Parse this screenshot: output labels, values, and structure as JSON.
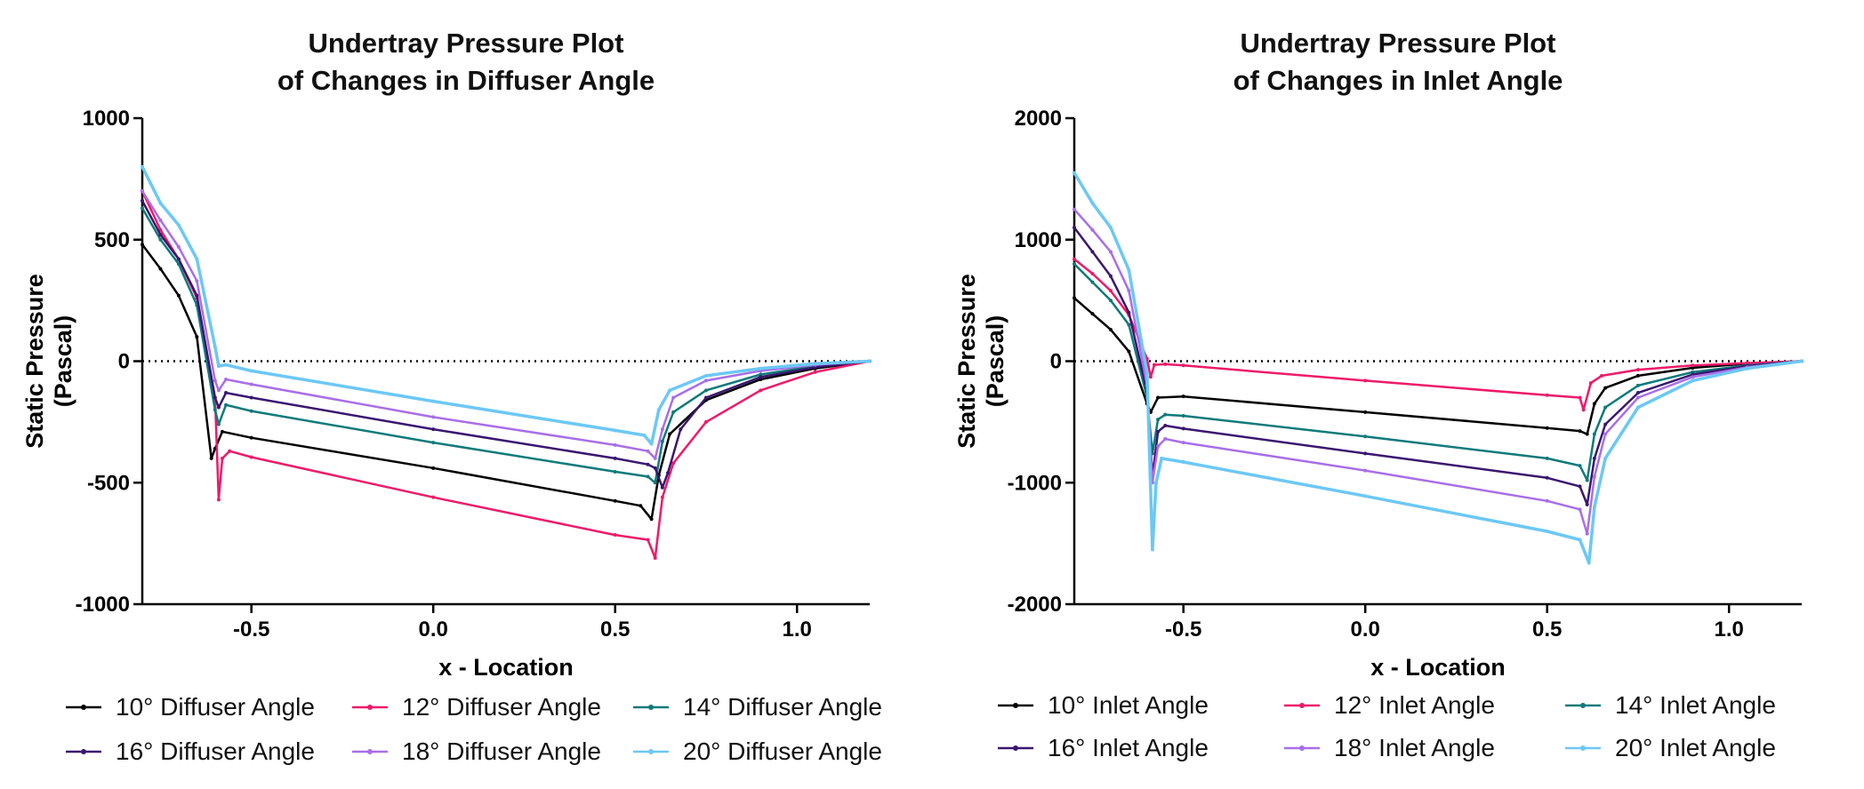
{
  "chart_data": [
    {
      "type": "line",
      "title": "Undertray Pressure Plot",
      "subtitle": "of Changes in Diffuser Angle",
      "xlabel": "x - Location",
      "ylabel_line1": "Static Pressure",
      "ylabel_line2": "(Pascal)",
      "xlim": [
        -0.8,
        1.2
      ],
      "ylim": [
        -1000,
        1000
      ],
      "x_ticks": [
        -0.5,
        0.0,
        0.5,
        1.0
      ],
      "x_tick_labels": [
        "-0.5",
        "0.0",
        "0.5",
        "1.0"
      ],
      "y_ticks": [
        1000,
        500,
        0,
        -500,
        -1000
      ],
      "y_tick_labels": [
        "1000",
        "500",
        "0",
        "-500",
        "-1000"
      ],
      "zero_line": "dotted",
      "grid": false,
      "legend_position": "bottom",
      "series": [
        {
          "name": "10° Diffuser Angle",
          "color": "#000000",
          "points": [
            [
              -0.8,
              480
            ],
            [
              -0.75,
              380
            ],
            [
              -0.7,
              270
            ],
            [
              -0.65,
              100
            ],
            [
              -0.61,
              -400
            ],
            [
              -0.6,
              -360
            ],
            [
              -0.58,
              -290
            ],
            [
              -0.5,
              -315
            ],
            [
              0.0,
              -440
            ],
            [
              0.5,
              -575
            ],
            [
              0.57,
              -595
            ],
            [
              0.6,
              -650
            ],
            [
              0.62,
              -470
            ],
            [
              0.65,
              -300
            ],
            [
              0.75,
              -160
            ],
            [
              0.9,
              -75
            ],
            [
              1.05,
              -30
            ],
            [
              1.2,
              0
            ]
          ]
        },
        {
          "name": "12° Diffuser Angle",
          "color": "#ee1a6a",
          "points": [
            [
              -0.8,
              700
            ],
            [
              -0.75,
              540
            ],
            [
              -0.7,
              420
            ],
            [
              -0.65,
              260
            ],
            [
              -0.6,
              -150
            ],
            [
              -0.59,
              -570
            ],
            [
              -0.58,
              -400
            ],
            [
              -0.56,
              -370
            ],
            [
              -0.5,
              -395
            ],
            [
              0.0,
              -560
            ],
            [
              0.5,
              -715
            ],
            [
              0.59,
              -735
            ],
            [
              0.61,
              -810
            ],
            [
              0.63,
              -560
            ],
            [
              0.66,
              -420
            ],
            [
              0.75,
              -250
            ],
            [
              0.9,
              -120
            ],
            [
              1.05,
              -45
            ],
            [
              1.2,
              0
            ]
          ]
        },
        {
          "name": "14° Diffuser Angle",
          "color": "#0f7a7a",
          "points": [
            [
              -0.8,
              630
            ],
            [
              -0.75,
              500
            ],
            [
              -0.7,
              400
            ],
            [
              -0.65,
              230
            ],
            [
              -0.6,
              -200
            ],
            [
              -0.59,
              -260
            ],
            [
              -0.57,
              -180
            ],
            [
              -0.5,
              -205
            ],
            [
              0.0,
              -335
            ],
            [
              0.5,
              -455
            ],
            [
              0.59,
              -475
            ],
            [
              0.61,
              -500
            ],
            [
              0.63,
              -330
            ],
            [
              0.66,
              -210
            ],
            [
              0.75,
              -120
            ],
            [
              0.9,
              -55
            ],
            [
              1.05,
              -20
            ],
            [
              1.2,
              0
            ]
          ]
        },
        {
          "name": "16° Diffuser Angle",
          "color": "#3a1670",
          "points": [
            [
              -0.8,
              660
            ],
            [
              -0.75,
              520
            ],
            [
              -0.7,
              420
            ],
            [
              -0.65,
              270
            ],
            [
              -0.6,
              -150
            ],
            [
              -0.59,
              -190
            ],
            [
              -0.57,
              -130
            ],
            [
              -0.5,
              -150
            ],
            [
              0.0,
              -280
            ],
            [
              0.5,
              -400
            ],
            [
              0.59,
              -425
            ],
            [
              0.61,
              -440
            ],
            [
              0.63,
              -520
            ],
            [
              0.645,
              -460
            ],
            [
              0.68,
              -280
            ],
            [
              0.75,
              -150
            ],
            [
              0.9,
              -65
            ],
            [
              1.05,
              -25
            ],
            [
              1.2,
              0
            ]
          ]
        },
        {
          "name": "18° Diffuser Angle",
          "color": "#a86ee8",
          "points": [
            [
              -0.8,
              700
            ],
            [
              -0.75,
              580
            ],
            [
              -0.7,
              470
            ],
            [
              -0.65,
              330
            ],
            [
              -0.6,
              -80
            ],
            [
              -0.59,
              -120
            ],
            [
              -0.57,
              -75
            ],
            [
              -0.5,
              -95
            ],
            [
              0.0,
              -230
            ],
            [
              0.5,
              -345
            ],
            [
              0.59,
              -370
            ],
            [
              0.61,
              -400
            ],
            [
              0.63,
              -280
            ],
            [
              0.66,
              -150
            ],
            [
              0.75,
              -80
            ],
            [
              0.9,
              -40
            ],
            [
              1.05,
              -15
            ],
            [
              1.2,
              0
            ]
          ]
        },
        {
          "name": "20° Diffuser Angle",
          "color": "#6cc8f5",
          "points": [
            [
              -0.8,
              800
            ],
            [
              -0.75,
              650
            ],
            [
              -0.7,
              560
            ],
            [
              -0.65,
              420
            ],
            [
              -0.6,
              60
            ],
            [
              -0.59,
              -20
            ],
            [
              -0.57,
              -15
            ],
            [
              -0.5,
              -40
            ],
            [
              0.0,
              -165
            ],
            [
              0.5,
              -285
            ],
            [
              0.58,
              -305
            ],
            [
              0.6,
              -340
            ],
            [
              0.62,
              -200
            ],
            [
              0.65,
              -120
            ],
            [
              0.75,
              -60
            ],
            [
              0.9,
              -30
            ],
            [
              1.05,
              -10
            ],
            [
              1.2,
              0
            ]
          ]
        }
      ]
    },
    {
      "type": "line",
      "title": "Undertray Pressure Plot",
      "subtitle": "of Changes in Inlet Angle",
      "xlabel": "x - Location",
      "ylabel_line1": "Static Pressure",
      "ylabel_line2": "(Pascal)",
      "xlim": [
        -0.8,
        1.2
      ],
      "ylim": [
        -2000,
        2000
      ],
      "x_ticks": [
        -0.5,
        0.0,
        0.5,
        1.0
      ],
      "x_tick_labels": [
        "-0.5",
        "0.0",
        "0.5",
        "1.0"
      ],
      "y_ticks": [
        2000,
        1000,
        0,
        -1000,
        -2000
      ],
      "y_tick_labels": [
        "2000",
        "1000",
        "0",
        "-1000",
        "-2000"
      ],
      "zero_line": "dotted",
      "grid": false,
      "legend_position": "bottom",
      "series": [
        {
          "name": "10° Inlet Angle",
          "color": "#000000",
          "points": [
            [
              -0.8,
              520
            ],
            [
              -0.75,
              390
            ],
            [
              -0.7,
              260
            ],
            [
              -0.65,
              80
            ],
            [
              -0.6,
              -350
            ],
            [
              -0.59,
              -420
            ],
            [
              -0.57,
              -300
            ],
            [
              -0.5,
              -290
            ],
            [
              0.0,
              -420
            ],
            [
              0.5,
              -550
            ],
            [
              0.59,
              -575
            ],
            [
              0.61,
              -600
            ],
            [
              0.63,
              -350
            ],
            [
              0.66,
              -220
            ],
            [
              0.75,
              -120
            ],
            [
              0.9,
              -55
            ],
            [
              1.05,
              -20
            ],
            [
              1.2,
              0
            ]
          ]
        },
        {
          "name": "12° Inlet Angle",
          "color": "#ee1a6a",
          "points": [
            [
              -0.8,
              840
            ],
            [
              -0.75,
              720
            ],
            [
              -0.7,
              580
            ],
            [
              -0.65,
              380
            ],
            [
              -0.6,
              20
            ],
            [
              -0.59,
              -130
            ],
            [
              -0.58,
              -30
            ],
            [
              -0.55,
              -25
            ],
            [
              -0.5,
              -35
            ],
            [
              0.0,
              -160
            ],
            [
              0.5,
              -280
            ],
            [
              0.59,
              -300
            ],
            [
              0.6,
              -400
            ],
            [
              0.62,
              -180
            ],
            [
              0.65,
              -120
            ],
            [
              0.75,
              -70
            ],
            [
              0.9,
              -35
            ],
            [
              1.05,
              -15
            ],
            [
              1.2,
              0
            ]
          ]
        },
        {
          "name": "14° Inlet Angle",
          "color": "#0f7a7a",
          "points": [
            [
              -0.8,
              800
            ],
            [
              -0.75,
              650
            ],
            [
              -0.7,
              500
            ],
            [
              -0.65,
              300
            ],
            [
              -0.6,
              -300
            ],
            [
              -0.585,
              -760
            ],
            [
              -0.57,
              -480
            ],
            [
              -0.55,
              -440
            ],
            [
              -0.5,
              -450
            ],
            [
              0.0,
              -620
            ],
            [
              0.5,
              -800
            ],
            [
              0.59,
              -860
            ],
            [
              0.61,
              -980
            ],
            [
              0.63,
              -600
            ],
            [
              0.66,
              -380
            ],
            [
              0.75,
              -200
            ],
            [
              0.9,
              -90
            ],
            [
              1.05,
              -35
            ],
            [
              1.2,
              0
            ]
          ]
        },
        {
          "name": "16° Inlet Angle",
          "color": "#3a1670",
          "points": [
            [
              -0.8,
              1100
            ],
            [
              -0.75,
              900
            ],
            [
              -0.7,
              700
            ],
            [
              -0.65,
              400
            ],
            [
              -0.6,
              -250
            ],
            [
              -0.585,
              -950
            ],
            [
              -0.57,
              -580
            ],
            [
              -0.55,
              -530
            ],
            [
              -0.5,
              -555
            ],
            [
              0.0,
              -760
            ],
            [
              0.5,
              -960
            ],
            [
              0.59,
              -1030
            ],
            [
              0.61,
              -1180
            ],
            [
              0.63,
              -800
            ],
            [
              0.66,
              -520
            ],
            [
              0.75,
              -260
            ],
            [
              0.9,
              -110
            ],
            [
              1.05,
              -40
            ],
            [
              1.2,
              0
            ]
          ]
        },
        {
          "name": "18° Inlet Angle",
          "color": "#a86ee8",
          "points": [
            [
              -0.8,
              1250
            ],
            [
              -0.75,
              1080
            ],
            [
              -0.7,
              900
            ],
            [
              -0.65,
              580
            ],
            [
              -0.6,
              -200
            ],
            [
              -0.585,
              -1000
            ],
            [
              -0.57,
              -700
            ],
            [
              -0.55,
              -640
            ],
            [
              -0.5,
              -670
            ],
            [
              0.0,
              -900
            ],
            [
              0.5,
              -1150
            ],
            [
              0.59,
              -1220
            ],
            [
              0.61,
              -1420
            ],
            [
              0.63,
              -950
            ],
            [
              0.66,
              -600
            ],
            [
              0.75,
              -300
            ],
            [
              0.9,
              -130
            ],
            [
              1.05,
              -50
            ],
            [
              1.2,
              0
            ]
          ]
        },
        {
          "name": "20° Inlet Angle",
          "color": "#6cc8f5",
          "points": [
            [
              -0.8,
              1550
            ],
            [
              -0.75,
              1300
            ],
            [
              -0.7,
              1100
            ],
            [
              -0.65,
              750
            ],
            [
              -0.6,
              -100
            ],
            [
              -0.585,
              -1550
            ],
            [
              -0.575,
              -1000
            ],
            [
              -0.56,
              -800
            ],
            [
              -0.5,
              -830
            ],
            [
              0.0,
              -1110
            ],
            [
              0.5,
              -1400
            ],
            [
              0.59,
              -1470
            ],
            [
              0.615,
              -1660
            ],
            [
              0.63,
              -1200
            ],
            [
              0.66,
              -800
            ],
            [
              0.75,
              -380
            ],
            [
              0.9,
              -160
            ],
            [
              1.05,
              -60
            ],
            [
              1.2,
              0
            ]
          ]
        }
      ]
    }
  ]
}
